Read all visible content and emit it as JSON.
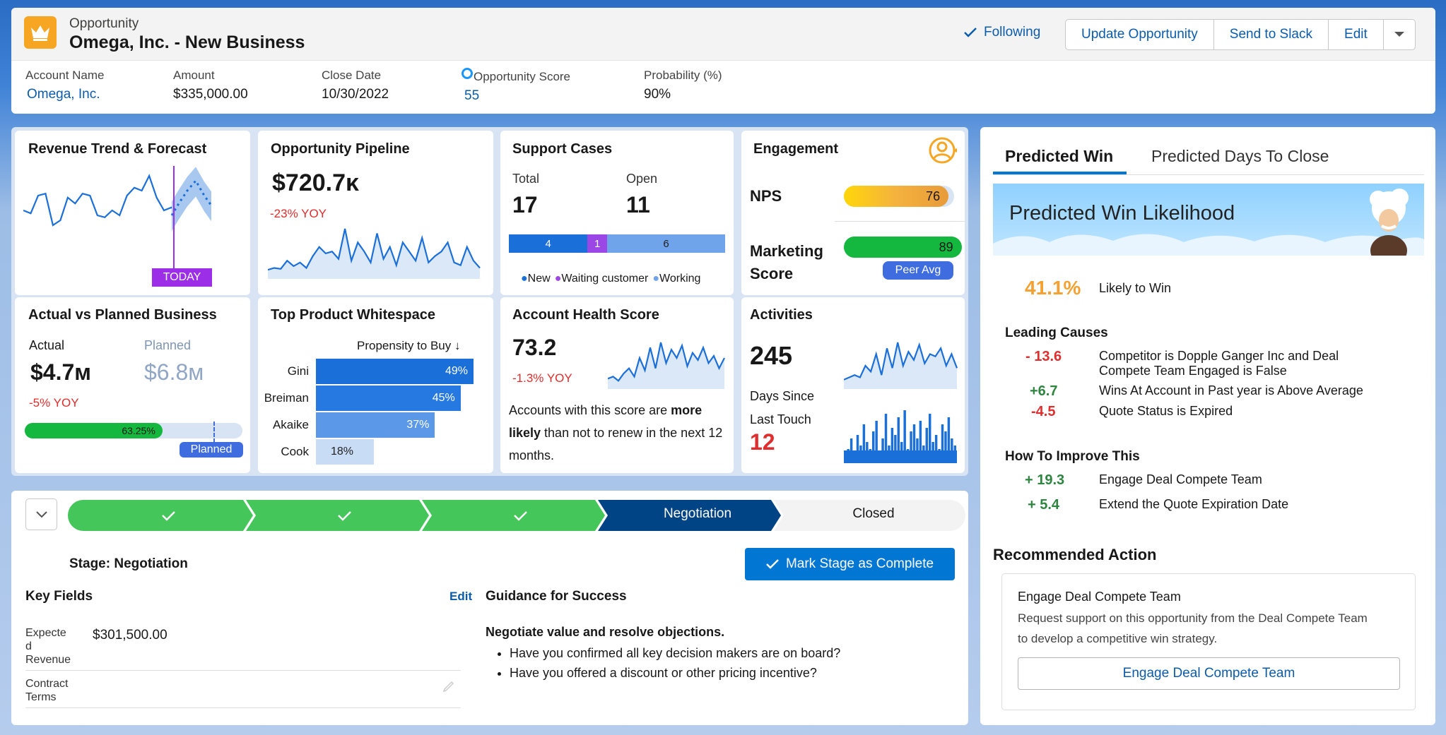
{
  "header": {
    "object_type": "Opportunity",
    "record_name": "Omega, Inc. - New Business",
    "following": "Following",
    "buttons": [
      "Update Opportunity",
      "Send to Slack",
      "Edit"
    ]
  },
  "fields": [
    {
      "label": "Account Name",
      "value": "Omega, Inc."
    },
    {
      "label": "Amount",
      "value": "$335,000.00"
    },
    {
      "label": "Close Date",
      "value": "10/30/2022"
    },
    {
      "label": "Opportunity Score",
      "value": "55"
    },
    {
      "label": "Probability (%)",
      "value": "90%"
    }
  ],
  "revenue": {
    "title": "Revenue Trend & Forecast",
    "today": "TODAY",
    "chart_data": {
      "type": "line",
      "actual": [
        55,
        52,
        70,
        72,
        40,
        45,
        68,
        62,
        72,
        70,
        50,
        48,
        55,
        50,
        70,
        78,
        75,
        90,
        68,
        55,
        58,
        50
      ],
      "forecast": [
        50,
        62,
        75,
        85,
        70,
        60
      ]
    }
  },
  "pipeline": {
    "title": "Opportunity Pipeline",
    "value": "$720.7ᴋ",
    "yoy": "-23% YOY",
    "chart_data": {
      "type": "area",
      "values": [
        10,
        12,
        11,
        20,
        14,
        18,
        12,
        25,
        35,
        28,
        30,
        22,
        55,
        20,
        40,
        30,
        18,
        50,
        22,
        35,
        15,
        40,
        30,
        20,
        45,
        18,
        25,
        30,
        40,
        18,
        15,
        35,
        20,
        12
      ]
    }
  },
  "support": {
    "title": "Support Cases",
    "total_label": "Total",
    "total": "17",
    "open_label": "Open",
    "open": "11",
    "segments": [
      {
        "label": "4",
        "value": 4,
        "color": "#1b6fd9"
      },
      {
        "label": "1",
        "value": 1,
        "color": "#9b47e6"
      },
      {
        "label": "6",
        "value": 6,
        "color": "#6fa3ea"
      }
    ],
    "legend": [
      "New",
      "Waiting customer",
      "Working"
    ]
  },
  "engagement": {
    "title": "Engagement",
    "nps_label": "NPS",
    "nps": "76",
    "nps_value": 76,
    "mkt_label1": "Marketing",
    "mkt_label2": "Score",
    "mkt": "89",
    "mkt_value": 89,
    "peer": "Peer Avg"
  },
  "actual_planned": {
    "title": "Actual vs Planned Business",
    "actual_label": "Actual",
    "actual": "$4.7ᴍ",
    "planned_label": "Planned",
    "planned": "$6.8ᴍ",
    "yoy": "-5% YOY",
    "progress": "63.25%",
    "progress_value": 63.25,
    "planned_tag": "Planned"
  },
  "whitespace": {
    "title": "Top Product Whitespace",
    "col": "Propensity to Buy ↓",
    "chart_data": {
      "type": "bar",
      "categories": [
        "Gini",
        "Breiman",
        "Akaike",
        "Cook"
      ],
      "values": [
        49,
        45,
        37,
        18
      ]
    }
  },
  "health": {
    "title": "Account Health Score",
    "score": "73.2",
    "yoy": "-1.3% YOY",
    "text_pre": "Accounts with this score are ",
    "text_bold": "more likely",
    "text_post": " than not to renew in the next 12  months.",
    "chart_data": {
      "type": "area",
      "values": [
        10,
        12,
        8,
        15,
        20,
        12,
        30,
        18,
        40,
        20,
        45,
        25,
        38,
        30,
        42,
        22,
        35,
        28,
        40,
        25,
        32,
        20,
        30
      ]
    }
  },
  "activities": {
    "title": "Activities",
    "count": "245",
    "since1": "Days Since",
    "since2": "Last Touch",
    "days": "12",
    "chart_data": {
      "type": "area",
      "values": [
        8,
        10,
        12,
        10,
        20,
        15,
        30,
        12,
        35,
        18,
        40,
        20,
        32,
        25,
        38,
        22,
        30,
        28,
        35,
        20,
        30,
        18
      ]
    },
    "bars": [
      10,
      20,
      35,
      15,
      40,
      25,
      55,
      30,
      20,
      45,
      60,
      15,
      35,
      70,
      25,
      50,
      40,
      65,
      30,
      75,
      20,
      45,
      55,
      35,
      60,
      25,
      50,
      70,
      30,
      40,
      20,
      55,
      45,
      65,
      35,
      25
    ]
  },
  "path": {
    "stages": [
      "",
      "",
      "",
      "Negotiation",
      "Closed"
    ],
    "stage_text": "Stage: Negotiation",
    "mark_btn": "Mark Stage as Complete"
  },
  "key_fields": {
    "title": "Key Fields",
    "edit": "Edit",
    "rows": [
      {
        "label1": "Expecte",
        "label2": "d",
        "label3": "Revenue",
        "value": "$301,500.00"
      },
      {
        "label1": "Contract",
        "label2": "Terms",
        "value": ""
      }
    ]
  },
  "guidance": {
    "title": "Guidance for Success",
    "heading": "Negotiate value and resolve objections.",
    "bullets": [
      "Have you confirmed all key decision makers are on board?",
      "Have you offered a discount or other pricing incentive?"
    ]
  },
  "prediction": {
    "tabs": [
      "Predicted Win",
      "Predicted Days To Close"
    ],
    "banner": "Predicted Win Likelihood",
    "pct": "41.1%",
    "pct_label": "Likely to Win",
    "leading_title": "Leading Causes",
    "leading": [
      {
        "v": "- 13.6",
        "t1": "Competitor is Dopple Ganger Inc and Deal",
        "t2": "Compete Team Engaged is False",
        "c": "red"
      },
      {
        "v": "+6.7",
        "t1": "Wins At Account in Past year is Above Average",
        "t2": "",
        "c": "green"
      },
      {
        "v": "-4.5",
        "t1": "Quote Status is Expired",
        "t2": "",
        "c": "red"
      }
    ],
    "improve_title": "How To Improve This",
    "improve": [
      {
        "v": "+ 19.3",
        "t": "Engage Deal Compete Team"
      },
      {
        "v": "+ 5.4",
        "t": "Extend the Quote Expiration Date"
      }
    ],
    "rec_title": "Recommended Action",
    "rec_name": "Engage Deal Compete Team",
    "rec_desc1": "Request support on this opportunity from the Deal Compete Team",
    "rec_desc2": "to develop a competitive win strategy.",
    "rec_btn": "Engage Deal Compete Team"
  },
  "colors": {
    "accent": "#0176d3",
    "green": "#45c65a",
    "navy": "#014486"
  }
}
